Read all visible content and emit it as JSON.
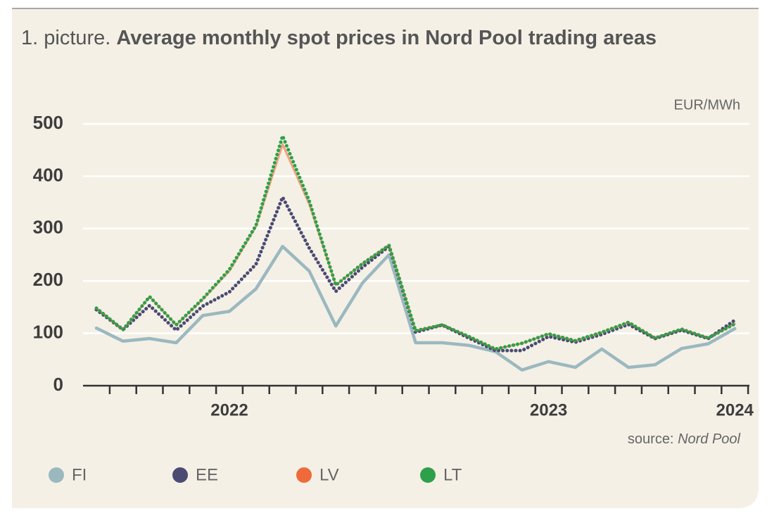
{
  "chart_data": {
    "type": "line",
    "title_prefix": "1. picture.",
    "title": "Average monthly spot prices in Nord Pool trading areas",
    "y_unit": "EUR/MWh",
    "source_label": "source:",
    "source": "Nord Pool",
    "categories": [
      null,
      null,
      null,
      null,
      null,
      "2022",
      null,
      null,
      null,
      null,
      null,
      null,
      null,
      null,
      null,
      null,
      null,
      "2023",
      null,
      null,
      null,
      null,
      null,
      null,
      "2024"
    ],
    "series": [
      {
        "name": "FI",
        "color": "#9bb8bf",
        "style": "solid",
        "values": [
          110,
          85,
          90,
          82,
          134,
          142,
          185,
          266,
          219,
          114,
          196,
          250,
          82,
          82,
          77,
          65,
          30,
          46,
          35,
          70,
          35,
          40,
          71,
          80,
          109
        ]
      },
      {
        "name": "EE",
        "color": "#4b4a72",
        "style": "dotted",
        "values": [
          145,
          107,
          153,
          106,
          152,
          179,
          232,
          360,
          263,
          180,
          226,
          266,
          102,
          116,
          91,
          67,
          67,
          94,
          83,
          98,
          117,
          90,
          106,
          90,
          125
        ]
      },
      {
        "name": "LV",
        "color": "#ef6a3a",
        "style": "solid",
        "values": [
          148,
          107,
          170,
          116,
          165,
          219,
          304,
          461,
          347,
          192,
          233,
          269,
          105,
          116,
          94,
          70,
          81,
          99,
          86,
          102,
          121,
          91,
          108,
          91,
          118
        ]
      },
      {
        "name": "LT",
        "color": "#2ea04a",
        "style": "dotted",
        "values": [
          148,
          107,
          170,
          116,
          166,
          222,
          306,
          477,
          353,
          192,
          233,
          268,
          105,
          116,
          94,
          70,
          81,
          99,
          86,
          102,
          121,
          91,
          108,
          91,
          118
        ]
      }
    ],
    "ylim": [
      0,
      500
    ],
    "yticks": [
      0,
      100,
      200,
      300,
      400,
      500
    ],
    "grid": true
  }
}
